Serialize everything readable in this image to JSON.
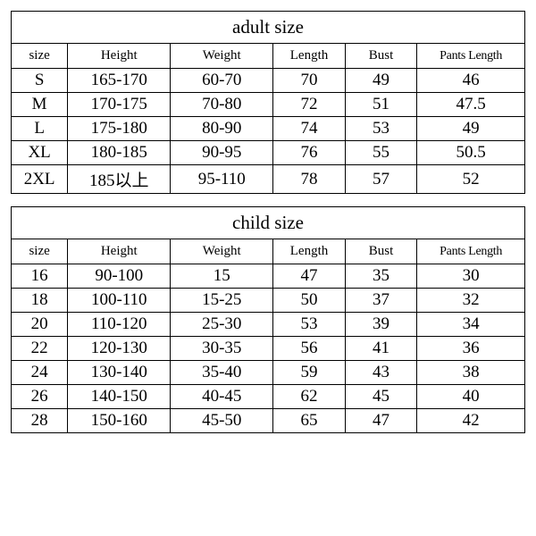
{
  "adult": {
    "title": "adult size",
    "columns": [
      "size",
      "Height",
      "Weight",
      "Length",
      "Bust",
      "Pants Length"
    ],
    "rows": [
      [
        "S",
        "165-170",
        "60-70",
        "70",
        "49",
        "46"
      ],
      [
        "M",
        "170-175",
        "70-80",
        "72",
        "51",
        "47.5"
      ],
      [
        "L",
        "175-180",
        "80-90",
        "74",
        "53",
        "49"
      ],
      [
        "XL",
        "180-185",
        "90-95",
        "76",
        "55",
        "50.5"
      ],
      [
        "2XL",
        "185以上",
        "95-110",
        "78",
        "57",
        "52"
      ]
    ]
  },
  "child": {
    "title": "child size",
    "columns": [
      "size",
      "Height",
      "Weight",
      "Length",
      "Bust",
      "Pants Length"
    ],
    "rows": [
      [
        "16",
        "90-100",
        "15",
        "47",
        "35",
        "30"
      ],
      [
        "18",
        "100-110",
        "15-25",
        "50",
        "37",
        "32"
      ],
      [
        "20",
        "110-120",
        "25-30",
        "53",
        "39",
        "34"
      ],
      [
        "22",
        "120-130",
        "30-35",
        "56",
        "41",
        "36"
      ],
      [
        "24",
        "130-140",
        "35-40",
        "59",
        "43",
        "38"
      ],
      [
        "26",
        "140-150",
        "40-45",
        "62",
        "45",
        "40"
      ],
      [
        "28",
        "150-160",
        "45-50",
        "65",
        "47",
        "42"
      ]
    ]
  },
  "style": {
    "border_color": "#000000",
    "background_color": "#ffffff",
    "text_color": "#000000",
    "title_fontsize": 21,
    "header_fontsize": 15,
    "data_fontsize": 19,
    "font_family": "Times New Roman",
    "col_widths_pct": [
      11,
      20,
      20,
      14,
      14,
      21
    ]
  }
}
